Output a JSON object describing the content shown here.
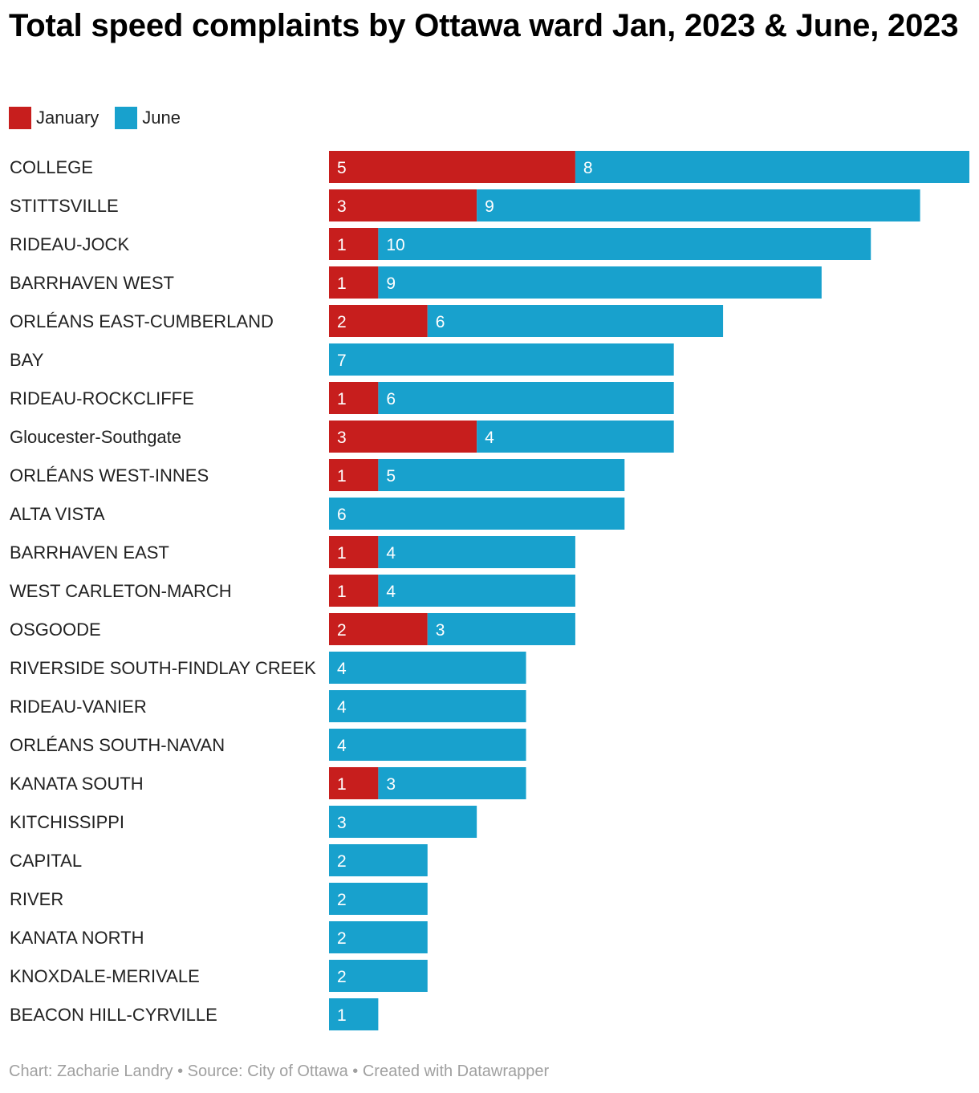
{
  "title": "Total speed complaints by Ottawa ward Jan, 2023 & June, 2023",
  "footer": "Chart: Zacharie Landry • Source: City of Ottawa • Created with Datawrapper",
  "colors": {
    "january": "#c71e1d",
    "june": "#18a1cd"
  },
  "chart_data": {
    "type": "bar",
    "orientation": "horizontal",
    "stacked": true,
    "title": "Total speed complaints by Ottawa ward Jan, 2023 & June, 2023",
    "legend_position": "top-left",
    "grid": false,
    "categories": [
      "COLLEGE",
      "STITTSVILLE",
      "RIDEAU-JOCK",
      "BARRHAVEN WEST",
      "ORLÉANS EAST-CUMBERLAND",
      "BAY",
      "RIDEAU-ROCKCLIFFE",
      "Gloucester-Southgate",
      "ORLÉANS WEST-INNES",
      "ALTA VISTA",
      "BARRHAVEN EAST",
      "WEST CARLETON-MARCH",
      "OSGOODE",
      "RIVERSIDE SOUTH-FINDLAY CREEK",
      "RIDEAU-VANIER",
      "ORLÉANS SOUTH-NAVAN",
      "KANATA SOUTH",
      "KITCHISSIPPI",
      "CAPITAL",
      "RIVER",
      "KANATA NORTH",
      "KNOXDALE-MERIVALE",
      "BEACON HILL-CYRVILLE"
    ],
    "series": [
      {
        "name": "January",
        "color": "#c71e1d",
        "values": [
          5,
          3,
          1,
          1,
          2,
          0,
          1,
          3,
          1,
          0,
          1,
          1,
          2,
          0,
          0,
          0,
          1,
          0,
          0,
          0,
          0,
          0,
          0
        ]
      },
      {
        "name": "June",
        "color": "#18a1cd",
        "values": [
          8,
          9,
          10,
          9,
          6,
          7,
          6,
          4,
          5,
          6,
          4,
          4,
          3,
          4,
          4,
          4,
          3,
          3,
          2,
          2,
          2,
          2,
          1
        ]
      }
    ],
    "xlim": [
      0,
      13
    ]
  }
}
